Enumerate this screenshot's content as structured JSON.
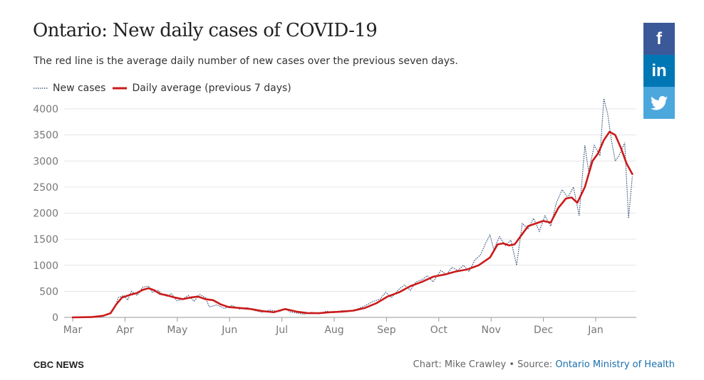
{
  "header": {
    "title": "Ontario: New daily cases of COVID-19",
    "subtitle": "The red line is the average daily number of new cases over the previous seven days."
  },
  "legend": {
    "new_cases": "New cases",
    "average": "Daily average (previous 7 days)"
  },
  "share": [
    {
      "label": "f",
      "icon": "facebook-icon"
    },
    {
      "label": "in",
      "icon": "linkedin-icon"
    },
    {
      "label": "twitter",
      "icon": "twitter-icon"
    }
  ],
  "footer": {
    "brand": "CBC NEWS",
    "credit": "Chart: Mike Crawley • Source: ",
    "source_link": "Ontario Ministry of Health"
  },
  "colors": {
    "average_line": "#cc1a1a",
    "new_cases_line": "#2c4a72",
    "grid": "#e6e6e6"
  },
  "chart_data": {
    "type": "line",
    "ylim": [
      0,
      4000
    ],
    "y_ticks": [
      0,
      500,
      1000,
      1500,
      2000,
      2500,
      3000,
      3500,
      4000
    ],
    "x_tick_labels": [
      "Mar",
      "Apr",
      "May",
      "Jun",
      "Jul",
      "Aug",
      "Sep",
      "Oct",
      "Nov",
      "Dec",
      "Jan"
    ],
    "x_range_months": [
      0,
      10.7
    ],
    "series": [
      {
        "name": "Daily average (previous 7 days)",
        "style": "solid",
        "points": [
          [
            0,
            0
          ],
          [
            0.5,
            5
          ],
          [
            0.8,
            30
          ],
          [
            1.0,
            80
          ],
          [
            1.15,
            250
          ],
          [
            1.3,
            380
          ],
          [
            1.5,
            430
          ],
          [
            1.7,
            470
          ],
          [
            1.85,
            530
          ],
          [
            2.0,
            560
          ],
          [
            2.15,
            520
          ],
          [
            2.3,
            450
          ],
          [
            2.5,
            420
          ],
          [
            2.7,
            380
          ],
          [
            2.9,
            350
          ],
          [
            3.1,
            380
          ],
          [
            3.3,
            400
          ],
          [
            3.5,
            350
          ],
          [
            3.7,
            330
          ],
          [
            3.9,
            250
          ],
          [
            4.1,
            200
          ],
          [
            4.4,
            180
          ],
          [
            4.7,
            160
          ],
          [
            5.0,
            120
          ],
          [
            5.3,
            100
          ],
          [
            5.6,
            160
          ],
          [
            5.9,
            110
          ],
          [
            6.2,
            80
          ],
          [
            6.5,
            80
          ],
          [
            6.8,
            100
          ],
          [
            7.1,
            110
          ],
          [
            7.4,
            130
          ],
          [
            7.7,
            180
          ],
          [
            8.0,
            270
          ],
          [
            8.3,
            400
          ],
          [
            8.6,
            480
          ],
          [
            8.9,
            600
          ],
          [
            9.2,
            680
          ],
          [
            9.5,
            780
          ],
          [
            9.8,
            820
          ],
          [
            10.1,
            880
          ],
          [
            10.4,
            920
          ],
          [
            10.7,
            1000
          ],
          [
            11.0,
            1150
          ],
          [
            11.2,
            1400
          ],
          [
            11.35,
            1420
          ],
          [
            11.5,
            1380
          ],
          [
            11.65,
            1400
          ],
          [
            11.85,
            1600
          ],
          [
            12.0,
            1750
          ],
          [
            12.2,
            1800
          ],
          [
            12.4,
            1850
          ],
          [
            12.6,
            1820
          ],
          [
            12.8,
            2100
          ],
          [
            13.0,
            2280
          ],
          [
            13.15,
            2300
          ],
          [
            13.3,
            2200
          ],
          [
            13.5,
            2500
          ],
          [
            13.7,
            3000
          ],
          [
            13.85,
            3150
          ],
          [
            14.0,
            3400
          ],
          [
            14.15,
            3560
          ],
          [
            14.3,
            3500
          ],
          [
            14.45,
            3250
          ],
          [
            14.6,
            2950
          ],
          [
            14.75,
            2750
          ]
        ]
      },
      {
        "name": "New cases",
        "style": "dotted",
        "points": [
          [
            0,
            0
          ],
          [
            0.5,
            8
          ],
          [
            0.8,
            25
          ],
          [
            1.0,
            90
          ],
          [
            1.12,
            200
          ],
          [
            1.2,
            380
          ],
          [
            1.35,
            420
          ],
          [
            1.45,
            330
          ],
          [
            1.55,
            500
          ],
          [
            1.7,
            420
          ],
          [
            1.85,
            580
          ],
          [
            2.0,
            600
          ],
          [
            2.1,
            480
          ],
          [
            2.25,
            520
          ],
          [
            2.35,
            450
          ],
          [
            2.5,
            400
          ],
          [
            2.6,
            460
          ],
          [
            2.75,
            320
          ],
          [
            2.9,
            350
          ],
          [
            3.05,
            420
          ],
          [
            3.2,
            310
          ],
          [
            3.35,
            440
          ],
          [
            3.5,
            380
          ],
          [
            3.6,
            200
          ],
          [
            3.8,
            240
          ],
          [
            4.0,
            170
          ],
          [
            4.2,
            230
          ],
          [
            4.4,
            160
          ],
          [
            4.6,
            190
          ],
          [
            4.8,
            130
          ],
          [
            5.0,
            100
          ],
          [
            5.2,
            140
          ],
          [
            5.45,
            110
          ],
          [
            5.6,
            160
          ],
          [
            5.75,
            100
          ],
          [
            5.95,
            80
          ],
          [
            6.1,
            60
          ],
          [
            6.3,
            100
          ],
          [
            6.5,
            70
          ],
          [
            6.7,
            120
          ],
          [
            6.9,
            90
          ],
          [
            7.1,
            130
          ],
          [
            7.3,
            120
          ],
          [
            7.5,
            160
          ],
          [
            7.7,
            220
          ],
          [
            7.9,
            300
          ],
          [
            8.1,
            350
          ],
          [
            8.25,
            480
          ],
          [
            8.4,
            380
          ],
          [
            8.6,
            540
          ],
          [
            8.75,
            620
          ],
          [
            8.9,
            520
          ],
          [
            9.05,
            680
          ],
          [
            9.2,
            720
          ],
          [
            9.35,
            800
          ],
          [
            9.5,
            680
          ],
          [
            9.7,
            900
          ],
          [
            9.85,
            820
          ],
          [
            10.0,
            960
          ],
          [
            10.15,
            900
          ],
          [
            10.3,
            1000
          ],
          [
            10.45,
            880
          ],
          [
            10.6,
            1100
          ],
          [
            10.75,
            1200
          ],
          [
            10.9,
            1450
          ],
          [
            11.0,
            1580
          ],
          [
            11.1,
            1300
          ],
          [
            11.25,
            1550
          ],
          [
            11.4,
            1380
          ],
          [
            11.55,
            1480
          ],
          [
            11.7,
            1000
          ],
          [
            11.85,
            1800
          ],
          [
            12.0,
            1700
          ],
          [
            12.15,
            1900
          ],
          [
            12.3,
            1650
          ],
          [
            12.45,
            1950
          ],
          [
            12.6,
            1750
          ],
          [
            12.75,
            2200
          ],
          [
            12.9,
            2450
          ],
          [
            13.05,
            2300
          ],
          [
            13.2,
            2500
          ],
          [
            13.35,
            1950
          ],
          [
            13.5,
            3300
          ],
          [
            13.6,
            2800
          ],
          [
            13.75,
            3300
          ],
          [
            13.9,
            3100
          ],
          [
            14.0,
            4200
          ],
          [
            14.1,
            3900
          ],
          [
            14.2,
            3400
          ],
          [
            14.3,
            3000
          ],
          [
            14.4,
            3100
          ],
          [
            14.55,
            3350
          ],
          [
            14.65,
            1900
          ],
          [
            14.75,
            2700
          ]
        ]
      }
    ]
  }
}
